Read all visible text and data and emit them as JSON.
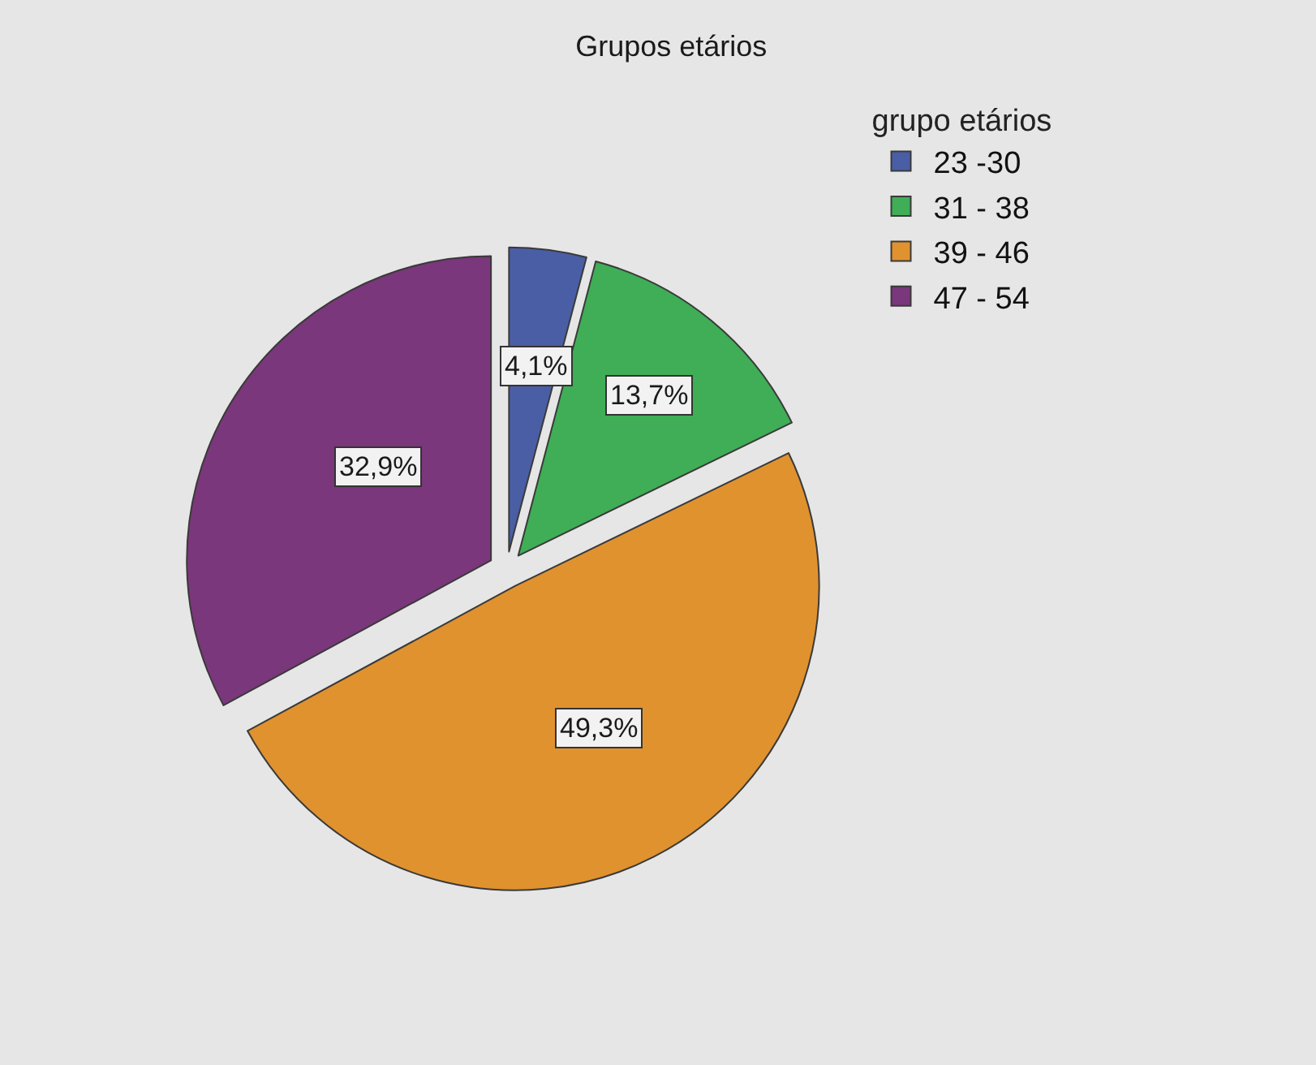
{
  "chart_data": {
    "type": "pie",
    "title": "Grupos etários",
    "legend_title": "grupo etários",
    "categories": [
      "23 -30",
      "31 - 38",
      "39 - 46",
      "47 - 54"
    ],
    "values": [
      4.1,
      13.7,
      49.3,
      32.9
    ],
    "value_labels": [
      "4,1%",
      "13,7%",
      "49,3%",
      "32,9%"
    ],
    "colors": [
      "#4a5ea6",
      "#3fae56",
      "#e0922f",
      "#7b377b"
    ],
    "legend": "top right"
  }
}
